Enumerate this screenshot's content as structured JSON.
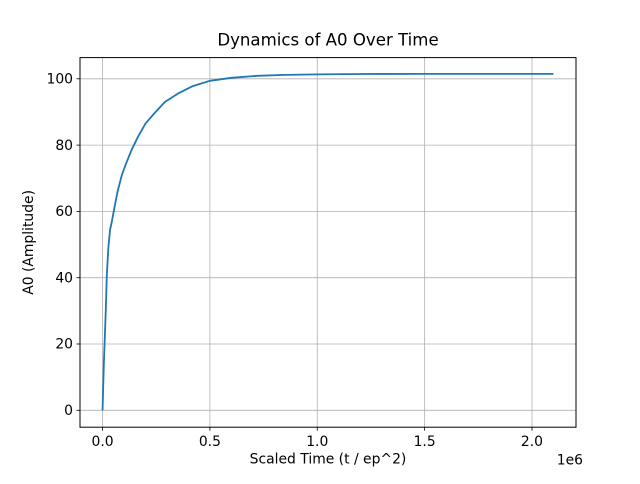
{
  "chart_data": {
    "type": "line",
    "title": "Dynamics of A0 Over Time",
    "xlabel": "Scaled Time (t / ep^2)",
    "ylabel": "A0 (Amplitude)",
    "x_offset_label": "1e6",
    "x_unit_multiplier": 1000000,
    "xlim": [
      -0.105,
      2.205
    ],
    "ylim": [
      -5.1,
      106.4
    ],
    "x_ticks": [
      0.0,
      0.5,
      1.0,
      1.5,
      2.0
    ],
    "x_tick_labels": [
      "0.0",
      "0.5",
      "1.0",
      "1.5",
      "2.0"
    ],
    "y_ticks": [
      0,
      20,
      40,
      60,
      80,
      100
    ],
    "y_tick_labels": [
      "0",
      "20",
      "40",
      "60",
      "80",
      "100"
    ],
    "grid": true,
    "legend_visible": false,
    "line_color": "#1f77b4",
    "grid_color": "#b0b0b0",
    "spine_color": "#000000",
    "background_color": "#ffffff",
    "series": [
      {
        "name": "A0",
        "x": [
          0,
          0.003,
          0.006,
          0.01,
          0.015,
          0.02,
          0.027,
          0.035,
          0.042,
          0.055,
          0.07,
          0.09,
          0.11,
          0.135,
          0.165,
          0.2,
          0.24,
          0.29,
          0.35,
          0.42,
          0.5,
          0.6,
          0.72,
          0.85,
          1.0,
          1.2,
          1.5,
          1.8,
          2.1
        ],
        "y": [
          0,
          7,
          14,
          21,
          30,
          41,
          49,
          54.5,
          56.5,
          61,
          66,
          71,
          74.5,
          78.5,
          82.5,
          86.5,
          89.5,
          93,
          95.5,
          97.8,
          99.4,
          100.3,
          100.9,
          101.2,
          101.35,
          101.45,
          101.5,
          101.5,
          101.5
        ]
      }
    ]
  }
}
